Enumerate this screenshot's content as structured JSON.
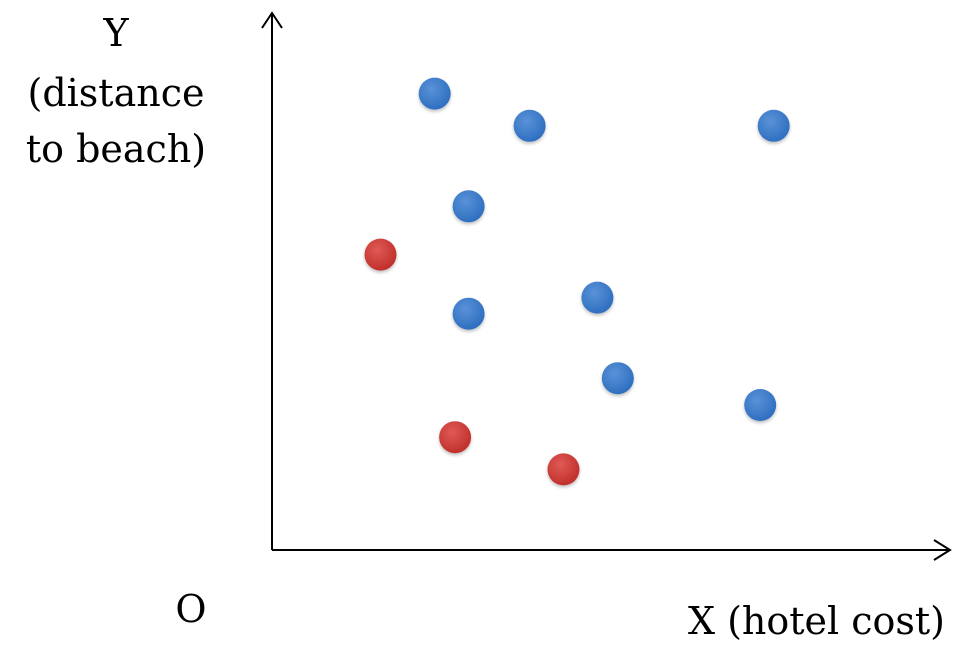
{
  "chart_data": {
    "type": "scatter",
    "title": "",
    "origin_label": "O",
    "xlabel": "X (hotel cost)",
    "ylabel": {
      "letter": "Y",
      "line1": "(distance",
      "line2": "to beach)"
    },
    "xlim": [
      0,
      10
    ],
    "ylim": [
      0,
      10
    ],
    "grid": false,
    "ticks": false,
    "colors": {
      "axis": "#000000",
      "blue": "#2f6fc0",
      "red": "#c0302c"
    },
    "series": [
      {
        "color": "blue",
        "points": [
          {
            "x": 2.4,
            "y": 8.5
          },
          {
            "x": 3.8,
            "y": 7.9
          },
          {
            "x": 7.4,
            "y": 7.9
          },
          {
            "x": 2.9,
            "y": 6.4
          },
          {
            "x": 2.9,
            "y": 4.4
          },
          {
            "x": 4.8,
            "y": 4.7
          },
          {
            "x": 5.1,
            "y": 3.2
          },
          {
            "x": 7.2,
            "y": 2.7
          }
        ]
      },
      {
        "color": "red",
        "points": [
          {
            "x": 1.6,
            "y": 5.5
          },
          {
            "x": 2.7,
            "y": 2.1
          },
          {
            "x": 4.3,
            "y": 1.5
          }
        ]
      }
    ]
  }
}
